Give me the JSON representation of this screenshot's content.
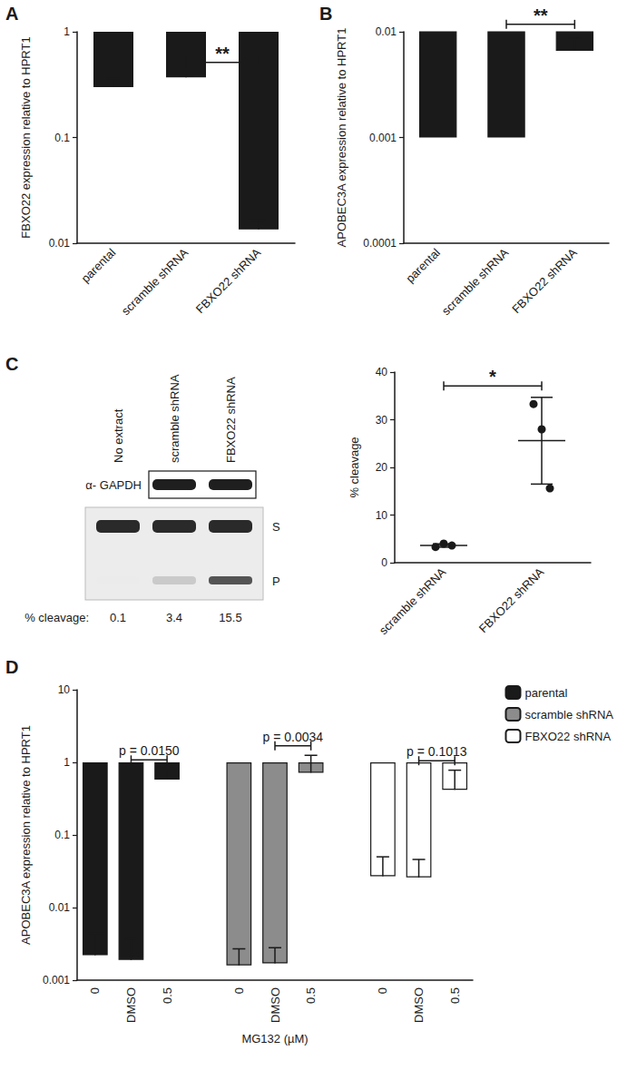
{
  "chart_data": [
    {
      "panel": "A",
      "type": "bar",
      "categories": [
        "parental",
        "scramble shRNA",
        "FBXO22 shRNA"
      ],
      "values": [
        0.3,
        0.37,
        0.0135
      ],
      "errors": [
        0.06,
        0.01,
        0.003
      ],
      "color": "#1a1a1a",
      "ylabel": "FBXO22 expression relative to HPRT1",
      "log": "y",
      "ylim": [
        0.01,
        1
      ],
      "yticks": [
        0.01,
        0.1,
        1
      ],
      "annotations": [
        {
          "text": "**",
          "from": 1,
          "to": 2
        }
      ]
    },
    {
      "panel": "B",
      "type": "bar",
      "categories": [
        "parental",
        "scramble shRNA",
        "FBXO22 shRNA"
      ],
      "values": [
        0.001,
        0.001,
        0.0066
      ],
      "errors": [
        0,
        0,
        0.0021
      ],
      "color": "#1a1a1a",
      "ylabel": "APOBEC3A expression relative to HPRT1",
      "log": "y",
      "ylim": [
        0.0001,
        0.01
      ],
      "yticks": [
        0.0001,
        0.001,
        0.01
      ],
      "annotations": [
        {
          "text": "**",
          "from": 1,
          "to": 2
        }
      ]
    },
    {
      "panel": "C",
      "type": "blot",
      "lanes": [
        "No extract",
        "scramble shRNA",
        "FBXO22 shRNA"
      ],
      "loading_control": {
        "label": "α- GAPDH",
        "lanes": [
          1,
          2
        ]
      },
      "bands": [
        "S",
        "P"
      ],
      "row_label": "% cleavage:",
      "values": [
        0.1,
        3.4,
        15.5
      ]
    },
    {
      "type": "scatter",
      "categories": [
        "scramble shRNA",
        "FBXO22 shRNA"
      ],
      "points": [
        [
          3.3,
          4.0,
          3.6
        ],
        [
          33.3,
          28.0,
          15.6
        ]
      ],
      "means": [
        3.6,
        25.6
      ],
      "errors": [
        0.35,
        9.1
      ],
      "color": "#1a1a1a",
      "ylabel": "% cleavage",
      "ylim": [
        0,
        40
      ],
      "yticks": [
        0,
        10,
        20,
        30,
        40
      ],
      "annotations": [
        {
          "text": "*",
          "from": 0,
          "to": 1
        }
      ]
    },
    {
      "panel": "D",
      "type": "bar",
      "categories": [
        "0",
        "DMSO",
        "0.5",
        null,
        "0",
        "DMSO",
        "0.5",
        null,
        "0",
        "DMSO",
        "0.5"
      ],
      "xlabel": "MG132 (µM)",
      "ylabel": "APOBEC3A expression relative to HPRT1",
      "log": "y",
      "ylim": [
        0.001,
        10
      ],
      "yticks": [
        0.001,
        0.01,
        0.1,
        1,
        10
      ],
      "legend": "top-right",
      "series": [
        {
          "name": "parental",
          "color": "#1a1a1a",
          "values": [
            0.0022,
            0.0019,
            0.58,
            null,
            null,
            null,
            null,
            null,
            null,
            null,
            null
          ],
          "errors": [
            0.0022,
            0.0018,
            0.22,
            null,
            null,
            null,
            null,
            null,
            null,
            null,
            null
          ]
        },
        {
          "name": "scramble shRNA",
          "color": "#8c8c8c",
          "values": [
            null,
            null,
            null,
            null,
            0.0016,
            0.0017,
            0.72,
            null,
            null,
            null,
            null
          ],
          "errors": [
            null,
            null,
            null,
            null,
            0.0011,
            0.0011,
            0.53,
            null,
            null,
            null,
            null
          ]
        },
        {
          "name": "FBXO22 shRNA",
          "color": "#ffffff",
          "values": [
            null,
            null,
            null,
            null,
            null,
            null,
            null,
            null,
            0.027,
            0.026,
            0.42
          ],
          "errors": [
            null,
            null,
            null,
            null,
            null,
            null,
            null,
            null,
            0.023,
            0.02,
            0.36
          ]
        }
      ],
      "annotations": [
        {
          "text": "p = 0.0150",
          "from": 1,
          "to": 2
        },
        {
          "text": "p = 0.0034",
          "from": 5,
          "to": 6
        },
        {
          "text": "p = 0.1013",
          "from": 9,
          "to": 10
        }
      ]
    }
  ]
}
